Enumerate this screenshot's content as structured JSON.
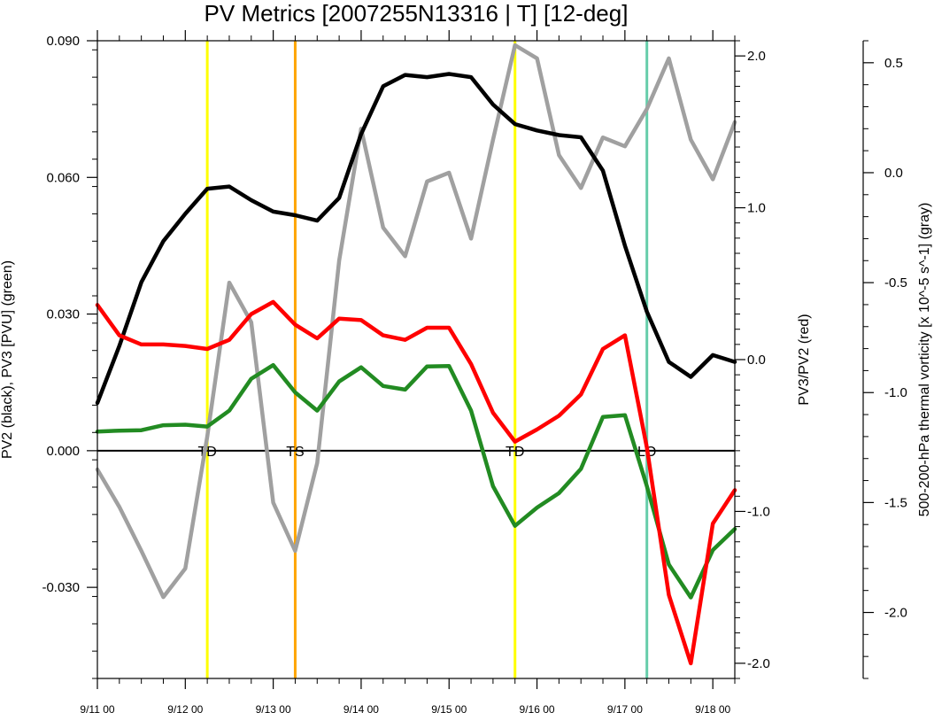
{
  "chart_data": {
    "type": "line",
    "title": "PV Metrics [2007255N13316 | T] [12-deg]",
    "xlabel": "",
    "x": [
      0,
      0.25,
      0.5,
      0.75,
      1,
      1.25,
      1.5,
      1.75,
      2,
      2.25,
      2.5,
      2.75,
      3,
      3.25,
      3.5,
      3.75,
      4,
      4.25,
      4.5,
      4.75,
      5,
      5.25,
      5.5,
      5.75,
      6,
      6.25,
      6.5,
      6.75,
      7,
      7.25
    ],
    "xlim": [
      0,
      7.25
    ],
    "x_ticks": [
      {
        "pos": 0,
        "label": "9/11 00"
      },
      {
        "pos": 1,
        "label": "9/12 00"
      },
      {
        "pos": 2,
        "label": "9/13 00"
      },
      {
        "pos": 3,
        "label": "9/14 00"
      },
      {
        "pos": 4,
        "label": "9/15 00"
      },
      {
        "pos": 5,
        "label": "9/16 00"
      },
      {
        "pos": 6,
        "label": "9/17 00"
      },
      {
        "pos": 7,
        "label": "9/18 00"
      }
    ],
    "axes": {
      "left": {
        "label": "PV2 (black), PV3 [PVU] (green)",
        "ylim": [
          -0.05,
          0.09
        ],
        "ticks": [
          "0.090",
          "0.060",
          "0.030",
          "0.000",
          "-0.030"
        ],
        "tick_values": [
          0.09,
          0.06,
          0.03,
          0.0,
          -0.03
        ]
      },
      "right": {
        "label": "PV3/PV2 (red)",
        "ylim": [
          -2.1,
          2.1
        ],
        "ticks": [
          "2.0",
          "1.0",
          "0.0",
          "-1.0",
          "-2.0"
        ],
        "tick_values": [
          2.0,
          1.0,
          0.0,
          -1.0,
          -2.0
        ]
      },
      "far_right": {
        "label": "500-200-hPa thermal vorticity [x 10^-5 s^-1] (gray)",
        "ylim": [
          -2.3,
          0.6
        ],
        "ticks": [
          "0.5",
          "0.0",
          "-0.5",
          "-1.0",
          "-1.5",
          "-2.0"
        ],
        "tick_values": [
          0.5,
          0.0,
          -0.5,
          -1.0,
          -1.5,
          -2.0
        ]
      }
    },
    "zero_line": 0.0,
    "series": [
      {
        "axis": "left",
        "color": "#000000",
        "values": [
          0.0105,
          0.023,
          0.037,
          0.046,
          0.052,
          0.0575,
          0.058,
          0.055,
          0.0525,
          0.0517,
          0.0505,
          0.0555,
          0.0695,
          0.08,
          0.0825,
          0.082,
          0.0827,
          0.082,
          0.076,
          0.0717,
          0.0703,
          0.0693,
          0.0688,
          0.0615,
          0.045,
          0.0305,
          0.0195,
          0.0162,
          0.021,
          0.0195
        ]
      },
      {
        "axis": "left",
        "color": "#228B22",
        "values": [
          0.0042,
          0.0044,
          0.0045,
          0.0056,
          0.0057,
          0.0053,
          0.0088,
          0.0158,
          0.0188,
          0.0128,
          0.0088,
          0.0152,
          0.0183,
          0.0142,
          0.0134,
          0.0185,
          0.0186,
          0.0088,
          -0.0078,
          -0.0165,
          -0.0125,
          -0.0093,
          -0.004,
          0.0074,
          0.0078,
          -0.0078,
          -0.025,
          -0.0322,
          -0.0218,
          -0.0172
        ]
      },
      {
        "axis": "right",
        "color": "#ff0000",
        "values": [
          0.36,
          0.16,
          0.1,
          0.1,
          0.09,
          0.07,
          0.13,
          0.3,
          0.38,
          0.23,
          0.14,
          0.27,
          0.26,
          0.16,
          0.13,
          0.21,
          0.21,
          -0.03,
          -0.35,
          -0.54,
          -0.46,
          -0.37,
          -0.23,
          0.07,
          0.16,
          -0.58,
          -1.55,
          -2.0,
          -1.08,
          -0.86
        ]
      },
      {
        "axis": "far_right",
        "color": "#a0a0a0",
        "values": [
          -1.35,
          -1.52,
          -1.72,
          -1.93,
          -1.8,
          -1.2,
          -0.5,
          -0.68,
          -1.5,
          -1.72,
          -1.32,
          -0.4,
          0.2,
          -0.25,
          -0.38,
          -0.04,
          0.0,
          -0.3,
          0.15,
          0.58,
          0.52,
          0.08,
          -0.07,
          0.16,
          0.12,
          0.29,
          0.52,
          0.15,
          -0.03,
          0.23
        ]
      }
    ],
    "markers": [
      {
        "x": 1.25,
        "label": "TD",
        "color": "#ffff00"
      },
      {
        "x": 2.25,
        "label": "TS",
        "color": "#ffa500"
      },
      {
        "x": 4.75,
        "label": "TD",
        "color": "#ffff00"
      },
      {
        "x": 6.25,
        "label": "LO",
        "color": "#66cdaa"
      }
    ]
  }
}
